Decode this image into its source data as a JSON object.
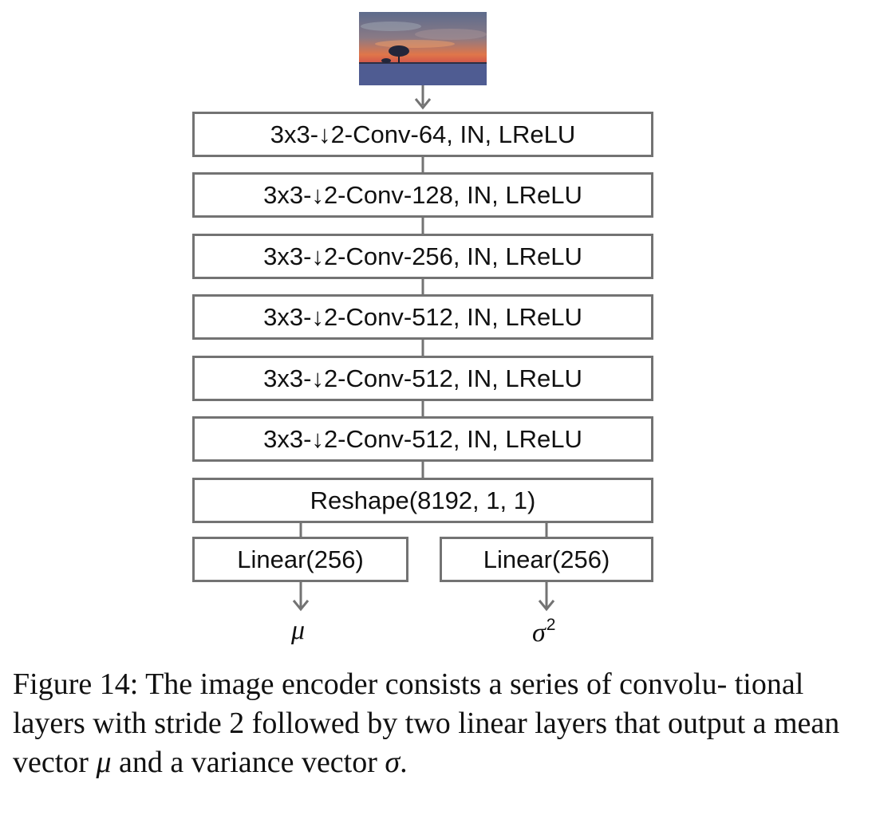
{
  "diagram": {
    "input_image": {
      "icon": "sunset-field-photo-icon",
      "colors": {
        "sky_top": "#5d6b8c",
        "sky_glow": "#e0764a",
        "horizon": "#d45a4a",
        "ground": "#4d5a8c"
      }
    },
    "layers": [
      {
        "prefix": "3x3-",
        "arrow": "↓",
        "suffix": "2-Conv-64, IN, LReLU"
      },
      {
        "prefix": "3x3-",
        "arrow": "↓",
        "suffix": "2-Conv-128, IN, LReLU"
      },
      {
        "prefix": "3x3-",
        "arrow": "↓",
        "suffix": "2-Conv-256, IN, LReLU"
      },
      {
        "prefix": "3x3-",
        "arrow": "↓",
        "suffix": "2-Conv-512, IN, LReLU"
      },
      {
        "prefix": "3x3-",
        "arrow": "↓",
        "suffix": "2-Conv-512, IN, LReLU"
      },
      {
        "prefix": "3x3-",
        "arrow": "↓",
        "suffix": "2-Conv-512, IN, LReLU"
      }
    ],
    "reshape": {
      "label": "Reshape(8192, 1, 1)"
    },
    "heads": {
      "left": {
        "label": "Linear(256)"
      },
      "right": {
        "label": "Linear(256)"
      }
    },
    "outputs": {
      "mean": {
        "symbol": "μ"
      },
      "variance": {
        "symbol": "σ",
        "power": "2"
      }
    },
    "colors": {
      "box_border": "#737373",
      "connector": "#737373",
      "arrow_highlight": "#c2751b"
    }
  },
  "caption": {
    "label": "Figure 14:",
    "text_1": " The image encoder consists a series of convolu- tional layers with stride 2 followed by two linear layers that output a mean vector ",
    "mu": "μ",
    "text_2": " and a variance vector ",
    "sigma": "σ",
    "text_3": "."
  }
}
